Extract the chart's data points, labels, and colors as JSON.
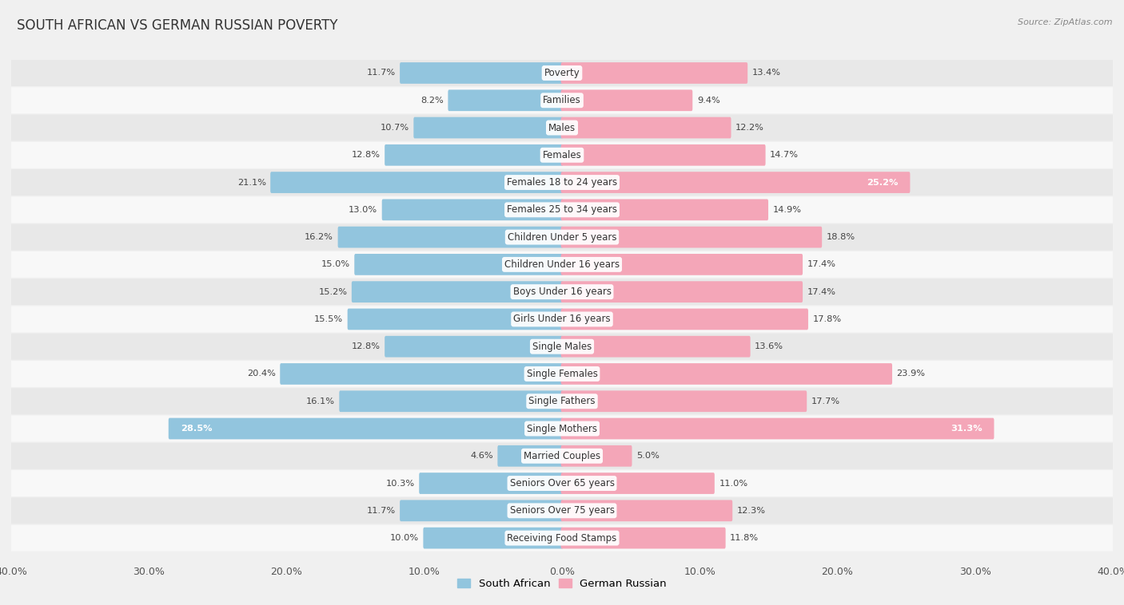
{
  "title": "SOUTH AFRICAN VS GERMAN RUSSIAN POVERTY",
  "source": "Source: ZipAtlas.com",
  "categories": [
    "Poverty",
    "Families",
    "Males",
    "Females",
    "Females 18 to 24 years",
    "Females 25 to 34 years",
    "Children Under 5 years",
    "Children Under 16 years",
    "Boys Under 16 years",
    "Girls Under 16 years",
    "Single Males",
    "Single Females",
    "Single Fathers",
    "Single Mothers",
    "Married Couples",
    "Seniors Over 65 years",
    "Seniors Over 75 years",
    "Receiving Food Stamps"
  ],
  "south_african": [
    11.7,
    8.2,
    10.7,
    12.8,
    21.1,
    13.0,
    16.2,
    15.0,
    15.2,
    15.5,
    12.8,
    20.4,
    16.1,
    28.5,
    4.6,
    10.3,
    11.7,
    10.0
  ],
  "german_russian": [
    13.4,
    9.4,
    12.2,
    14.7,
    25.2,
    14.9,
    18.8,
    17.4,
    17.4,
    17.8,
    13.6,
    23.9,
    17.7,
    31.3,
    5.0,
    11.0,
    12.3,
    11.8
  ],
  "sa_color": "#92c5de",
  "gr_color": "#f4a6b8",
  "sa_color_dark": "#5b9dc9",
  "gr_color_dark": "#e87ca0",
  "sa_label": "South African",
  "gr_label": "German Russian",
  "axis_max": 40.0,
  "bg_color": "#f0f0f0",
  "row_color_odd": "#e8e8e8",
  "row_color_even": "#f8f8f8",
  "title_fontsize": 12,
  "label_fontsize": 8.5,
  "value_fontsize": 8.2
}
